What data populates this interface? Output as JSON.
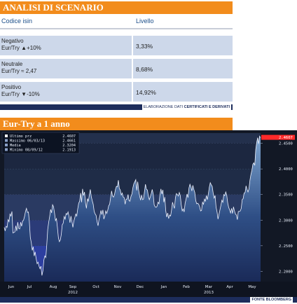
{
  "scenario": {
    "title": "ANALISI DI SCENARIO",
    "col_isin": "Codice isin",
    "col_level": "Livello",
    "rows": [
      {
        "label": "Negativo\nEur/Try ▲+10%",
        "value": "3,33%"
      },
      {
        "label": "Neutrale\nEur/Try ≈ 2,47",
        "value": "8,68%"
      },
      {
        "label": "Positivo\nEur/Try ▼-10%",
        "value": "14,92%"
      }
    ],
    "credit_prefix": "ELABORAZIONE DATI",
    "credit_brand": "CERTIFICATI E DERIVATI"
  },
  "chart_title": "Eur-Try a 1 anno",
  "source": "FONTE BLOOMBERG",
  "colors": {
    "orange": "#f28c1c",
    "navy": "#1d2d5c",
    "row": "#cdd8ea",
    "last": "#ff2a2a"
  },
  "chart_data": {
    "type": "area",
    "title": "Eur-Try a 1 anno",
    "legend": [
      {
        "label": "Ultimo prz",
        "value": "2.4607"
      },
      {
        "label": "Massimo 06/03/13",
        "value": "2.4661"
      },
      {
        "label": "Media",
        "value": "2.3204"
      },
      {
        "label": "Minimo 08/09/12",
        "value": "2.1913"
      }
    ],
    "x_ticks": [
      "Jun",
      "Jul",
      "Aug",
      "Sep",
      "Oct",
      "Nov",
      "Dec",
      "Jan",
      "Feb",
      "Mar",
      "Apr",
      "May"
    ],
    "x_year_labels": [
      "2012",
      "2013"
    ],
    "y_ticks": [
      2.2,
      2.25,
      2.3,
      2.35,
      2.4,
      2.45
    ],
    "y_tick_labels": [
      "2.2000",
      "2.2500",
      "2.3000",
      "2.3500",
      "2.4000",
      "2.4500"
    ],
    "ylim": [
      2.18,
      2.47
    ],
    "last_label": "2.4607",
    "series": [
      {
        "values": [
          2.286,
          2.279,
          2.288,
          2.286,
          2.301,
          2.297,
          2.312,
          2.308,
          2.317,
          2.275,
          2.276,
          2.277,
          2.289,
          2.279,
          2.296,
          2.284,
          2.283,
          2.296,
          2.288,
          2.298,
          2.3,
          2.307,
          2.317,
          2.323,
          2.315,
          2.316,
          2.297,
          2.266,
          2.256,
          2.241,
          2.248,
          2.23,
          2.238,
          2.225,
          2.215,
          2.218,
          2.21,
          2.205,
          2.21,
          2.192,
          2.201,
          2.222,
          2.23,
          2.227,
          2.252,
          2.282,
          2.296,
          2.307,
          2.321,
          2.314,
          2.33,
          2.326,
          2.314,
          2.299,
          2.303,
          2.286,
          2.266,
          2.258,
          2.261,
          2.272,
          2.291,
          2.294,
          2.307,
          2.302,
          2.313,
          2.311,
          2.316,
          2.307,
          2.295,
          2.308,
          2.297,
          2.286,
          2.298,
          2.305,
          2.312,
          2.308,
          2.322,
          2.333,
          2.337,
          2.353,
          2.335,
          2.361,
          2.348,
          2.355,
          2.334,
          2.323,
          2.342,
          2.337,
          2.349,
          2.36,
          2.346,
          2.338,
          2.331,
          2.317,
          2.312,
          2.309,
          2.297,
          2.289,
          2.301,
          2.309,
          2.319,
          2.311,
          2.32,
          2.302,
          2.308,
          2.318,
          2.313,
          2.319,
          2.328,
          2.331,
          2.344,
          2.357,
          2.347,
          2.345,
          2.35,
          2.36,
          2.366,
          2.365,
          2.378,
          2.362,
          2.359,
          2.349,
          2.353,
          2.345,
          2.344,
          2.331,
          2.341,
          2.341,
          2.35,
          2.338,
          2.337,
          2.346,
          2.351,
          2.363,
          2.371,
          2.375,
          2.379,
          2.358,
          2.375,
          2.358,
          2.347,
          2.339,
          2.349,
          2.34,
          2.341,
          2.356,
          2.37,
          2.36,
          2.359,
          2.347,
          2.34,
          2.345,
          2.352,
          2.36,
          2.351,
          2.33,
          2.326,
          2.325,
          2.327,
          2.335,
          2.332,
          2.35,
          2.361,
          2.351,
          2.359,
          2.335,
          2.345,
          2.318,
          2.306,
          2.314,
          2.303,
          2.31,
          2.308,
          2.32,
          2.335,
          2.328,
          2.323,
          2.344,
          2.352,
          2.35,
          2.347,
          2.354,
          2.348,
          2.33,
          2.318,
          2.322,
          2.316,
          2.333,
          2.341,
          2.351,
          2.344,
          2.363,
          2.37,
          2.365,
          2.357,
          2.368,
          2.36,
          2.354,
          2.338,
          2.332,
          2.333,
          2.331,
          2.326,
          2.318,
          2.319,
          2.335,
          2.331,
          2.341,
          2.337,
          2.348,
          2.34,
          2.351,
          2.364,
          2.373,
          2.369,
          2.366,
          2.353,
          2.343,
          2.348,
          2.325,
          2.316,
          2.302,
          2.311,
          2.32,
          2.329,
          2.339,
          2.335,
          2.35,
          2.348,
          2.355,
          2.349,
          2.334,
          2.325,
          2.32,
          2.314,
          2.323,
          2.313,
          2.326,
          2.318,
          2.312,
          2.31,
          2.301,
          2.317,
          2.317,
          2.318,
          2.323,
          2.34,
          2.342,
          2.353,
          2.354,
          2.367,
          2.36,
          2.355,
          2.361,
          2.378,
          2.389,
          2.397,
          2.409,
          2.412,
          2.407,
          2.438,
          2.452,
          2.461,
          2.449,
          2.464,
          2.461
        ]
      }
    ]
  }
}
